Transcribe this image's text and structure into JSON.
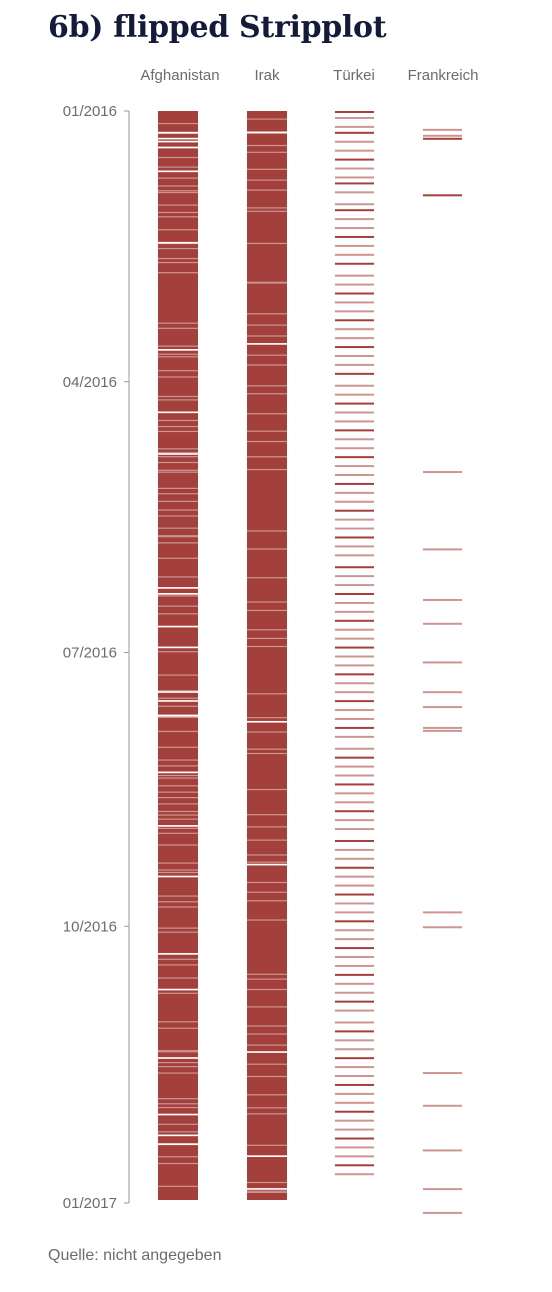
{
  "title": "6b) flipped Stripplot",
  "source": "Quelle: nicht angegeben",
  "colors": {
    "strong": "#a4403c",
    "light": "#cd9592",
    "axis": "#9a9a9a",
    "text": "#6b6b72"
  },
  "chart_data": {
    "type": "scatter",
    "orientation": "vertical-time",
    "title": "6b) flipped Stripplot",
    "xlabel": "",
    "ylabel": "",
    "y_range": [
      "2016-01-01",
      "2017-01-01"
    ],
    "y_ticks": [
      "01/2016",
      "04/2016",
      "07/2016",
      "10/2016",
      "01/2017"
    ],
    "grid": false,
    "legend": "none",
    "categories": [
      "Afghanistan",
      "Irak",
      "Türkei",
      "Frankreich"
    ],
    "series": [
      {
        "name": "Afghanistan",
        "gap_days": [
          7,
          9,
          10,
          12,
          20,
          44,
          80,
          101,
          115,
          160,
          162,
          173,
          180,
          195,
          198,
          203,
          222,
          240,
          257,
          283,
          295,
          318,
          337,
          344,
          347
        ]
      },
      {
        "name": "Irak",
        "gap_days": [
          7,
          78,
          205,
          253,
          316,
          351,
          362
        ]
      },
      {
        "name": "Türkei",
        "dates": [
          "2016-01-01",
          "2016-01-03",
          "2016-01-06",
          "2016-01-08",
          "2016-01-11",
          "2016-01-14",
          "2016-01-17",
          "2016-01-20",
          "2016-01-23",
          "2016-01-25",
          "2016-01-28",
          "2016-02-01",
          "2016-02-03",
          "2016-02-06",
          "2016-02-09",
          "2016-02-12",
          "2016-02-15",
          "2016-02-18",
          "2016-02-21",
          "2016-02-25",
          "2016-02-28",
          "2016-03-02",
          "2016-03-05",
          "2016-03-08",
          "2016-03-11",
          "2016-03-14",
          "2016-03-17",
          "2016-03-20",
          "2016-03-23",
          "2016-03-26",
          "2016-03-29",
          "2016-04-02",
          "2016-04-05",
          "2016-04-08",
          "2016-04-11",
          "2016-04-14",
          "2016-04-17",
          "2016-04-20",
          "2016-04-23",
          "2016-04-26",
          "2016-04-29",
          "2016-05-02",
          "2016-05-05",
          "2016-05-08",
          "2016-05-11",
          "2016-05-14",
          "2016-05-17",
          "2016-05-20",
          "2016-05-23",
          "2016-05-26",
          "2016-05-29",
          "2016-06-02",
          "2016-06-05",
          "2016-06-08",
          "2016-06-11",
          "2016-06-14",
          "2016-06-17",
          "2016-06-20",
          "2016-06-23",
          "2016-06-26",
          "2016-06-29",
          "2016-07-02",
          "2016-07-05",
          "2016-07-08",
          "2016-07-11",
          "2016-07-14",
          "2016-07-17",
          "2016-07-20",
          "2016-07-23",
          "2016-07-26",
          "2016-07-29",
          "2016-08-02",
          "2016-08-05",
          "2016-08-08",
          "2016-08-11",
          "2016-08-14",
          "2016-08-17",
          "2016-08-20",
          "2016-08-23",
          "2016-08-26",
          "2016-08-29",
          "2016-09-02",
          "2016-09-05",
          "2016-09-08",
          "2016-09-11",
          "2016-09-14",
          "2016-09-17",
          "2016-09-20",
          "2016-09-23",
          "2016-09-26",
          "2016-09-29",
          "2016-10-02",
          "2016-10-05",
          "2016-10-08",
          "2016-10-11",
          "2016-10-14",
          "2016-10-17",
          "2016-10-20",
          "2016-10-23",
          "2016-10-26",
          "2016-10-29",
          "2016-11-02",
          "2016-11-05",
          "2016-11-08",
          "2016-11-11",
          "2016-11-14",
          "2016-11-17",
          "2016-11-20",
          "2016-11-23",
          "2016-11-26",
          "2016-11-29",
          "2016-12-02",
          "2016-12-05",
          "2016-12-08",
          "2016-12-11",
          "2016-12-14",
          "2016-12-17",
          "2016-12-20",
          "2016-12-23"
        ]
      },
      {
        "name": "Frankreich",
        "dates": [
          "2016-01-07",
          "2016-01-09",
          "2016-01-10",
          "2016-01-29",
          "2016-05-01",
          "2016-05-27",
          "2016-06-13",
          "2016-06-21",
          "2016-07-04",
          "2016-07-14",
          "2016-07-19",
          "2016-07-26",
          "2016-07-27",
          "2016-09-26",
          "2016-10-01",
          "2016-11-19",
          "2016-11-30",
          "2016-12-15",
          "2016-12-28",
          "2017-01-05"
        ]
      }
    ]
  }
}
